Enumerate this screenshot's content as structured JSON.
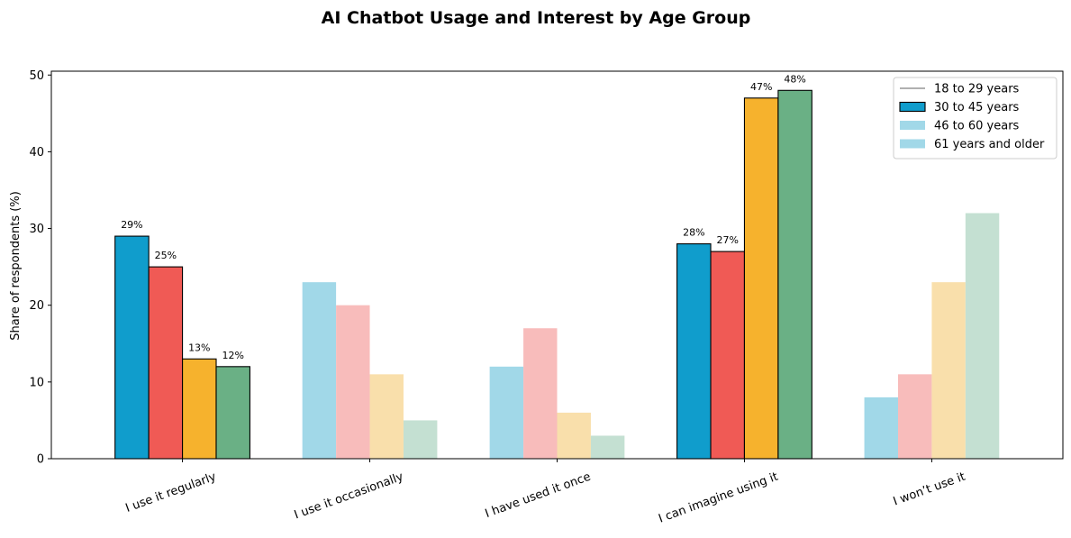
{
  "chart_data": {
    "type": "bar",
    "title": "AI Chatbot Usage and Interest by Age Group",
    "xlabel": "",
    "ylabel": "Share of respondents (%)",
    "ylim": [
      0,
      50.5
    ],
    "yticks": [
      "0",
      "10",
      "20",
      "30",
      "40",
      "50"
    ],
    "categories": [
      "I use it regularly",
      "I use it occasionally",
      "I have used it once",
      "I can imagine using it",
      "I won’t use it"
    ],
    "series": [
      {
        "name": "18 to 29 years",
        "color": "#109dcc",
        "light_color": "#a1d8e8",
        "values": [
          29,
          23,
          12,
          28,
          8
        ]
      },
      {
        "name": "30 to 45 years",
        "color": "#f05a55",
        "light_color": "#f8bcbb",
        "values": [
          25,
          20,
          17,
          27,
          11
        ]
      },
      {
        "name": "46 to 60 years",
        "color": "#f6b22d",
        "light_color": "#f9dfab",
        "values": [
          13,
          11,
          6,
          47,
          23
        ]
      },
      {
        "name": "61 years and older",
        "color": "#6ab085",
        "light_color": "#c4e0d2",
        "values": [
          12,
          5,
          3,
          48,
          32
        ]
      }
    ],
    "highlighted_categories": [
      0,
      3
    ],
    "data_labels": {
      "0": [
        "29%",
        "25%",
        "13%",
        "12%"
      ],
      "3": [
        "28%",
        "27%",
        "47%",
        "48%"
      ]
    },
    "legend": {
      "placement": "top-right",
      "entries": [
        {
          "label": "18 to 29 years",
          "marker": "line",
          "color": "#808080"
        },
        {
          "label": "30 to 45 years",
          "marker": "box",
          "color": "#109dcc",
          "outline": true
        },
        {
          "label": "46 to 60 years",
          "marker": "box",
          "color": "#a1d8e8",
          "outline": false
        },
        {
          "label": "61 years and older",
          "marker": "box",
          "color": "#a1d8e8",
          "outline": false
        }
      ]
    },
    "grid": false
  }
}
